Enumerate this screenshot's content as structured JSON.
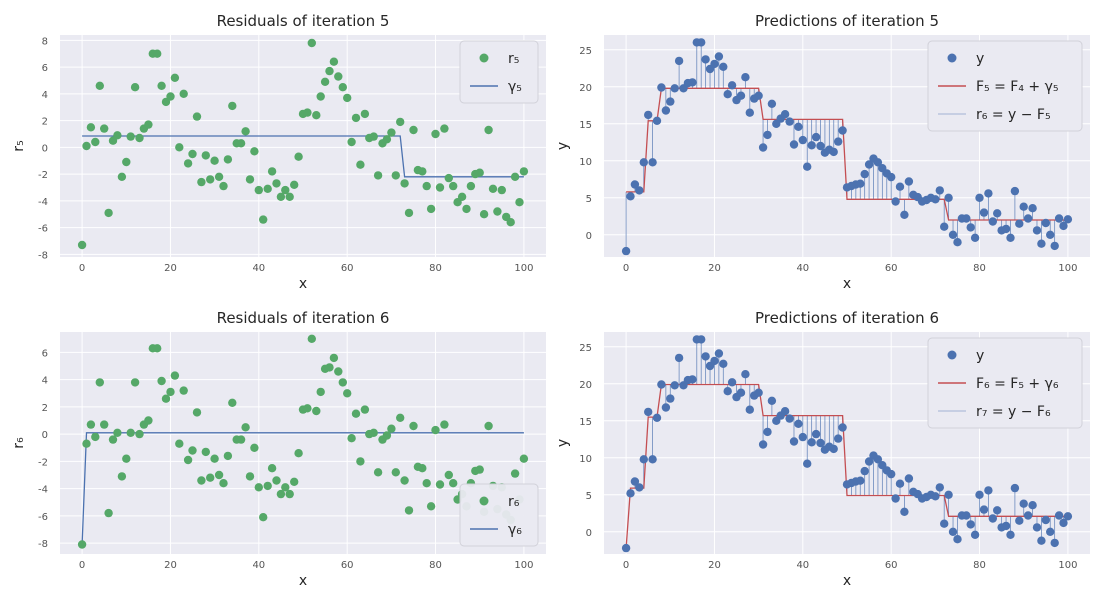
{
  "chart_data": [
    {
      "id": "residuals-5",
      "type": "scatter",
      "title": "Residuals of iteration 5",
      "xlabel": "x",
      "ylabel": "r₅",
      "xlim": [
        -5,
        105
      ],
      "ylim": [
        -8.2,
        8.4
      ],
      "xticks": [
        0,
        20,
        40,
        60,
        80,
        100
      ],
      "yticks": [
        -8,
        -6,
        -4,
        -2,
        0,
        2,
        4,
        6,
        8
      ],
      "grid": true,
      "legend_position": "top-right",
      "colors": {
        "points": "#55a868",
        "line": "#4c72b0"
      },
      "legend": [
        "r₅",
        "γ₅"
      ],
      "points": {
        "x": [
          0,
          1,
          2,
          3,
          4,
          5,
          6,
          7,
          8,
          9,
          10,
          11,
          12,
          13,
          14,
          15,
          16,
          17,
          18,
          19,
          20,
          21,
          22,
          23,
          24,
          25,
          26,
          27,
          28,
          29,
          30,
          31,
          32,
          33,
          34,
          35,
          36,
          37,
          38,
          39,
          40,
          41,
          42,
          43,
          44,
          45,
          46,
          47,
          48,
          49,
          50,
          51,
          52,
          53,
          54,
          55,
          56,
          57,
          58,
          59,
          60,
          61,
          62,
          63,
          64,
          65,
          66,
          67,
          68,
          69,
          70,
          71,
          72,
          73,
          74,
          75,
          76,
          77,
          78,
          79,
          80,
          81,
          82,
          83,
          84,
          85,
          86,
          87,
          88,
          89,
          90,
          91,
          92,
          93,
          94,
          95,
          96,
          97,
          98,
          99,
          100
        ],
        "y": [
          -7.3,
          0.1,
          1.5,
          0.4,
          4.6,
          1.4,
          -4.9,
          0.5,
          0.9,
          -2.2,
          -1.1,
          0.8,
          4.5,
          0.7,
          1.4,
          1.7,
          7.0,
          7.0,
          4.6,
          3.4,
          3.8,
          5.2,
          0.0,
          4.0,
          -1.2,
          -0.5,
          2.3,
          -2.6,
          -0.6,
          -2.4,
          -1.0,
          -2.2,
          -2.9,
          -0.9,
          3.1,
          0.3,
          0.3,
          1.2,
          -2.4,
          -0.3,
          -3.2,
          -5.4,
          -3.1,
          -1.8,
          -2.7,
          -3.7,
          -3.2,
          -3.7,
          -2.8,
          -0.7,
          2.5,
          2.6,
          7.8,
          2.4,
          3.8,
          4.9,
          5.7,
          6.4,
          5.3,
          4.5,
          3.7,
          0.4,
          2.2,
          -1.3,
          2.5,
          0.7,
          0.8,
          -2.1,
          0.3,
          0.6,
          1.1,
          -2.1,
          1.9,
          -2.7,
          -4.9,
          1.3,
          -1.7,
          -1.8,
          -2.9,
          -4.6,
          1.0,
          -3.0,
          1.4,
          -2.3,
          -2.9,
          -4.1,
          -3.7,
          -4.6,
          -2.9,
          -2.0,
          -1.9,
          -5.0,
          1.3,
          -3.1,
          -4.8,
          -3.2,
          -5.2,
          -5.6,
          -2.2,
          -4.1,
          -1.8
        ]
      },
      "line": {
        "x": [
          0,
          72,
          73,
          100
        ],
        "y": [
          0.85,
          0.85,
          -2.2,
          -2.2
        ]
      }
    },
    {
      "id": "predictions-5",
      "type": "scatter",
      "title": "Predictions of iteration 5",
      "xlabel": "x",
      "ylabel": "y",
      "xlim": [
        -5,
        105
      ],
      "ylim": [
        -3.0,
        27.0
      ],
      "xticks": [
        0,
        20,
        40,
        60,
        80,
        100
      ],
      "yticks": [
        0,
        5,
        10,
        15,
        20,
        25
      ],
      "grid": true,
      "legend_position": "top-right",
      "colors": {
        "points": "#4c72b0",
        "line": "#c44e52",
        "residuals": "#4c72b0"
      },
      "legend": [
        "y",
        "F₅ = F₄ + γ₅",
        "r₆ = y − F₅"
      ],
      "points": {
        "x": [
          0,
          1,
          2,
          3,
          4,
          5,
          6,
          7,
          8,
          9,
          10,
          11,
          12,
          13,
          14,
          15,
          16,
          17,
          18,
          19,
          20,
          21,
          22,
          23,
          24,
          25,
          26,
          27,
          28,
          29,
          30,
          31,
          32,
          33,
          34,
          35,
          36,
          37,
          38,
          39,
          40,
          41,
          42,
          43,
          44,
          45,
          46,
          47,
          48,
          49,
          50,
          51,
          52,
          53,
          54,
          55,
          56,
          57,
          58,
          59,
          60,
          61,
          62,
          63,
          64,
          65,
          66,
          67,
          68,
          69,
          70,
          71,
          72,
          73,
          74,
          75,
          76,
          77,
          78,
          79,
          80,
          81,
          82,
          83,
          84,
          85,
          86,
          87,
          88,
          89,
          90,
          91,
          92,
          93,
          94,
          95,
          96,
          97,
          98,
          99,
          100
        ],
        "y": [
          -2.2,
          5.2,
          6.8,
          6.0,
          9.8,
          16.2,
          9.8,
          15.4,
          19.9,
          16.8,
          18.0,
          19.8,
          23.5,
          19.8,
          20.5,
          20.6,
          26.0,
          26.0,
          23.7,
          22.4,
          23.1,
          24.1,
          22.7,
          19.0,
          20.2,
          18.2,
          18.8,
          21.3,
          16.5,
          18.4,
          18.8,
          11.8,
          13.5,
          17.7,
          15.0,
          15.7,
          16.3,
          15.3,
          12.2,
          14.6,
          12.8,
          9.2,
          12.1,
          13.2,
          12.0,
          11.1,
          11.5,
          11.2,
          12.6,
          14.1,
          6.4,
          6.6,
          6.8,
          6.9,
          8.2,
          9.5,
          10.3,
          9.8,
          9.0,
          8.3,
          7.8,
          4.5,
          6.5,
          2.7,
          7.2,
          5.4,
          5.1,
          4.5,
          4.7,
          5.0,
          4.8,
          6.0,
          1.1,
          5.0,
          0.0,
          -1.0,
          2.2,
          2.2,
          1.0,
          -0.4,
          5.0,
          3.0,
          5.6,
          1.8,
          2.9,
          0.6,
          0.8,
          -0.4,
          5.9,
          1.5,
          3.8,
          2.2,
          3.6,
          0.6,
          -1.2,
          1.6,
          0.0,
          -1.5,
          2.2,
          1.2,
          2.1
        ]
      },
      "line": {
        "x": [
          0,
          4,
          5,
          7,
          8,
          30,
          31,
          49,
          50,
          72,
          73,
          100
        ],
        "y": [
          5.8,
          5.8,
          15.4,
          15.4,
          19.8,
          19.8,
          15.6,
          15.6,
          4.8,
          4.8,
          2.0,
          2.0
        ]
      }
    },
    {
      "id": "residuals-6",
      "type": "scatter",
      "title": "Residuals of iteration 6",
      "xlabel": "x",
      "ylabel": "r₆",
      "xlim": [
        -5,
        105
      ],
      "ylim": [
        -8.8,
        7.5
      ],
      "xticks": [
        0,
        20,
        40,
        60,
        80,
        100
      ],
      "yticks": [
        -8,
        -6,
        -4,
        -2,
        0,
        2,
        4,
        6
      ],
      "grid": true,
      "legend_position": "bottom-right",
      "colors": {
        "points": "#55a868",
        "line": "#4c72b0"
      },
      "legend": [
        "r₆",
        "γ₆"
      ],
      "points": {
        "x": [
          0,
          1,
          2,
          3,
          4,
          5,
          6,
          7,
          8,
          9,
          10,
          11,
          12,
          13,
          14,
          15,
          16,
          17,
          18,
          19,
          20,
          21,
          22,
          23,
          24,
          25,
          26,
          27,
          28,
          29,
          30,
          31,
          32,
          33,
          34,
          35,
          36,
          37,
          38,
          39,
          40,
          41,
          42,
          43,
          44,
          45,
          46,
          47,
          48,
          49,
          50,
          51,
          52,
          53,
          54,
          55,
          56,
          57,
          58,
          59,
          60,
          61,
          62,
          63,
          64,
          65,
          66,
          67,
          68,
          69,
          70,
          71,
          72,
          73,
          74,
          75,
          76,
          77,
          78,
          79,
          80,
          81,
          82,
          83,
          84,
          85,
          86,
          87,
          88,
          89,
          90,
          91,
          92,
          93,
          94,
          95,
          96,
          97,
          98,
          99,
          100
        ],
        "y": [
          -8.1,
          -0.7,
          0.7,
          -0.2,
          3.8,
          0.7,
          -5.8,
          -0.4,
          0.1,
          -3.1,
          -1.8,
          0.1,
          3.8,
          0.0,
          0.7,
          1.0,
          6.3,
          6.3,
          3.9,
          2.6,
          3.1,
          4.3,
          -0.7,
          3.2,
          -1.9,
          -1.2,
          1.6,
          -3.4,
          -1.3,
          -3.2,
          -1.8,
          -3.0,
          -3.6,
          -1.6,
          2.3,
          -0.4,
          -0.4,
          0.5,
          -3.1,
          -1.0,
          -3.9,
          -6.1,
          -3.8,
          -2.5,
          -3.4,
          -4.4,
          -3.9,
          -4.4,
          -3.5,
          -1.4,
          1.8,
          1.9,
          7.0,
          1.7,
          3.1,
          4.8,
          4.9,
          5.6,
          4.6,
          3.8,
          3.0,
          -0.3,
          1.5,
          -2.0,
          1.8,
          0.0,
          0.1,
          -2.8,
          -0.4,
          -0.1,
          0.4,
          -2.8,
          1.2,
          -3.4,
          -5.6,
          0.6,
          -2.4,
          -2.5,
          -3.6,
          -5.3,
          0.3,
          -3.7,
          0.7,
          -3.0,
          -3.6,
          -4.8,
          -4.4,
          -5.3,
          -3.6,
          -2.7,
          -2.6,
          -5.7,
          0.6,
          -3.8,
          -5.5,
          -3.9,
          -5.9,
          -6.3,
          -2.9,
          -4.8,
          -1.8
        ]
      },
      "line": {
        "x": [
          0,
          1,
          100
        ],
        "y": [
          -8.1,
          0.1,
          0.1
        ]
      }
    },
    {
      "id": "predictions-6",
      "type": "scatter",
      "title": "Predictions of iteration 6",
      "xlabel": "x",
      "ylabel": "y",
      "xlim": [
        -5,
        105
      ],
      "ylim": [
        -3.0,
        27.0
      ],
      "xticks": [
        0,
        20,
        40,
        60,
        80,
        100
      ],
      "yticks": [
        0,
        5,
        10,
        15,
        20,
        25
      ],
      "grid": true,
      "legend_position": "top-right",
      "colors": {
        "points": "#4c72b0",
        "line": "#c44e52",
        "residuals": "#4c72b0"
      },
      "legend": [
        "y",
        "F₆ = F₅ + γ₆",
        "r₇ = y − F₆"
      ],
      "points": {
        "x": [
          0,
          1,
          2,
          3,
          4,
          5,
          6,
          7,
          8,
          9,
          10,
          11,
          12,
          13,
          14,
          15,
          16,
          17,
          18,
          19,
          20,
          21,
          22,
          23,
          24,
          25,
          26,
          27,
          28,
          29,
          30,
          31,
          32,
          33,
          34,
          35,
          36,
          37,
          38,
          39,
          40,
          41,
          42,
          43,
          44,
          45,
          46,
          47,
          48,
          49,
          50,
          51,
          52,
          53,
          54,
          55,
          56,
          57,
          58,
          59,
          60,
          61,
          62,
          63,
          64,
          65,
          66,
          67,
          68,
          69,
          70,
          71,
          72,
          73,
          74,
          75,
          76,
          77,
          78,
          79,
          80,
          81,
          82,
          83,
          84,
          85,
          86,
          87,
          88,
          89,
          90,
          91,
          92,
          93,
          94,
          95,
          96,
          97,
          98,
          99,
          100
        ],
        "y": [
          -2.2,
          5.2,
          6.8,
          6.0,
          9.8,
          16.2,
          9.8,
          15.4,
          19.9,
          16.8,
          18.0,
          19.8,
          23.5,
          19.8,
          20.5,
          20.6,
          26.0,
          26.0,
          23.7,
          22.4,
          23.1,
          24.1,
          22.7,
          19.0,
          20.2,
          18.2,
          18.8,
          21.3,
          16.5,
          18.4,
          18.8,
          11.8,
          13.5,
          17.7,
          15.0,
          15.7,
          16.3,
          15.3,
          12.2,
          14.6,
          12.8,
          9.2,
          12.1,
          13.2,
          12.0,
          11.1,
          11.5,
          11.2,
          12.6,
          14.1,
          6.4,
          6.6,
          6.8,
          6.9,
          8.2,
          9.5,
          10.3,
          9.8,
          9.0,
          8.3,
          7.8,
          4.5,
          6.5,
          2.7,
          7.2,
          5.4,
          5.1,
          4.5,
          4.7,
          5.0,
          4.8,
          6.0,
          1.1,
          5.0,
          0.0,
          -1.0,
          2.2,
          2.2,
          1.0,
          -0.4,
          5.0,
          3.0,
          5.6,
          1.8,
          2.9,
          0.6,
          0.8,
          -0.4,
          5.9,
          1.5,
          3.8,
          2.2,
          3.6,
          0.6,
          -1.2,
          1.6,
          0.0,
          -1.5,
          2.2,
          1.2,
          2.1
        ]
      },
      "line": {
        "x": [
          0,
          1,
          4,
          5,
          7,
          8,
          30,
          31,
          49,
          50,
          72,
          73,
          100
        ],
        "y": [
          -2.2,
          5.9,
          5.9,
          15.5,
          15.5,
          19.9,
          19.9,
          15.7,
          15.7,
          4.9,
          4.9,
          2.1,
          2.1
        ]
      }
    }
  ]
}
